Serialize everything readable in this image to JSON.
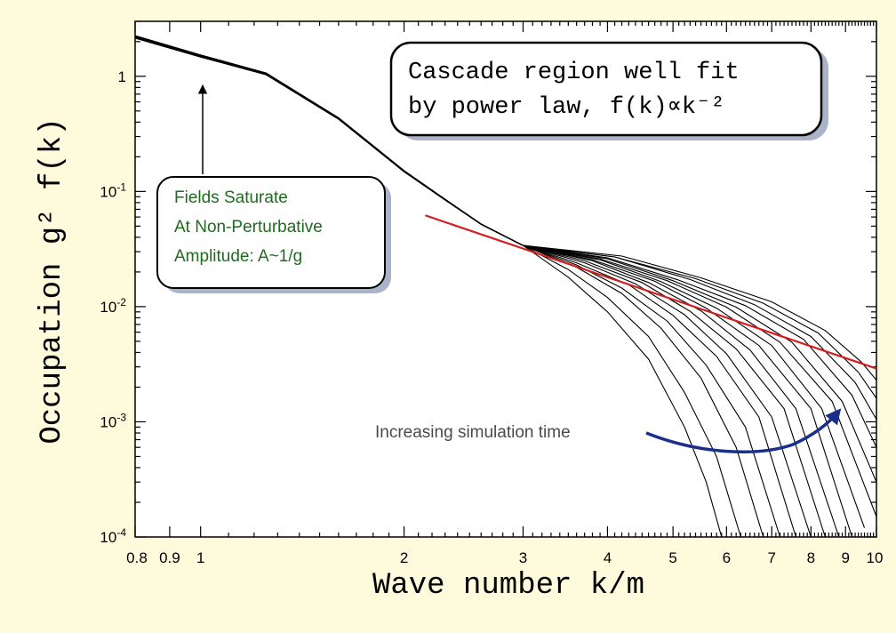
{
  "chart_data": {
    "type": "line",
    "xscale": "log",
    "yscale": "log",
    "xlim": [
      0.8,
      10
    ],
    "ylim": [
      0.0001,
      3
    ],
    "xlabel": "Wave number k/m",
    "ylabel": "Occupation g² f(k)",
    "x_ticks": [
      {
        "value": 0.8,
        "label": "0.8"
      },
      {
        "value": 0.9,
        "label": "0.9"
      },
      {
        "value": 1,
        "label": "1"
      },
      {
        "value": 2,
        "label": "2"
      },
      {
        "value": 3,
        "label": "3"
      },
      {
        "value": 4,
        "label": "4"
      },
      {
        "value": 5,
        "label": "5"
      },
      {
        "value": 6,
        "label": "6"
      },
      {
        "value": 7,
        "label": "7"
      },
      {
        "value": 8,
        "label": "8"
      },
      {
        "value": 9,
        "label": "9"
      },
      {
        "value": 10,
        "label": "10"
      }
    ],
    "y_ticks": [
      {
        "value": 1,
        "base": "1",
        "exp": ""
      },
      {
        "value": 0.1,
        "base": "10",
        "exp": "-1"
      },
      {
        "value": 0.01,
        "base": "10",
        "exp": "-2"
      },
      {
        "value": 0.001,
        "base": "10",
        "exp": "-3"
      },
      {
        "value": 0.0001,
        "base": "10",
        "exp": "-4"
      }
    ],
    "common_curve": {
      "x": [
        0.8,
        1.0,
        1.25,
        1.6,
        2.0,
        2.3,
        2.6,
        3.0
      ],
      "y": [
        2.2,
        1.5,
        1.05,
        0.43,
        0.15,
        0.085,
        0.052,
        0.034
      ]
    },
    "series_tails": [
      {
        "name": "t1",
        "x": [
          3.0,
          3.5,
          4.0,
          4.6,
          5.2,
          5.6,
          5.9
        ],
        "y": [
          0.034,
          0.018,
          0.009,
          0.0035,
          0.0009,
          0.0003,
          0.0001
        ]
      },
      {
        "name": "t2",
        "x": [
          3.0,
          3.5,
          4.0,
          4.6,
          5.2,
          5.8,
          6.3
        ],
        "y": [
          0.034,
          0.021,
          0.012,
          0.0055,
          0.0018,
          0.0005,
          0.0001
        ]
      },
      {
        "name": "t3",
        "x": [
          3.0,
          3.6,
          4.2,
          4.8,
          5.5,
          6.2,
          6.8
        ],
        "y": [
          0.034,
          0.022,
          0.013,
          0.0065,
          0.0024,
          0.0006,
          0.0001
        ]
      },
      {
        "name": "t4",
        "x": [
          3.0,
          3.6,
          4.2,
          4.9,
          5.6,
          6.4,
          7.2
        ],
        "y": [
          0.034,
          0.023,
          0.0145,
          0.0075,
          0.0031,
          0.0009,
          0.0001
        ]
      },
      {
        "name": "t5",
        "x": [
          3.0,
          3.6,
          4.3,
          5.0,
          5.8,
          6.7,
          7.6
        ],
        "y": [
          0.034,
          0.024,
          0.0155,
          0.0084,
          0.0037,
          0.0011,
          0.0001
        ]
      },
      {
        "name": "t6",
        "x": [
          3.0,
          3.7,
          4.4,
          5.2,
          6.0,
          7.0,
          8.0
        ],
        "y": [
          0.034,
          0.024,
          0.0158,
          0.0085,
          0.0039,
          0.0011,
          0.0001
        ]
      },
      {
        "name": "t7",
        "x": [
          3.0,
          3.7,
          4.5,
          5.3,
          6.2,
          7.3,
          8.4
        ],
        "y": [
          0.034,
          0.025,
          0.0162,
          0.0091,
          0.0043,
          0.0013,
          0.0001
        ]
      },
      {
        "name": "t8",
        "x": [
          3.0,
          3.8,
          4.6,
          5.5,
          6.5,
          7.6,
          8.8
        ],
        "y": [
          0.034,
          0.025,
          0.0162,
          0.0092,
          0.0042,
          0.0013,
          0.0001
        ]
      },
      {
        "name": "t9",
        "x": [
          3.0,
          3.8,
          4.7,
          5.6,
          6.7,
          8.0,
          9.2
        ],
        "y": [
          0.034,
          0.0255,
          0.0166,
          0.0097,
          0.0046,
          0.0013,
          0.0001
        ]
      },
      {
        "name": "t10",
        "x": [
          3.0,
          3.9,
          4.8,
          5.8,
          7.0,
          8.3,
          9.6
        ],
        "y": [
          0.034,
          0.0255,
          0.0165,
          0.0097,
          0.0046,
          0.0013,
          0.00012
        ]
      },
      {
        "name": "t11",
        "x": [
          3.0,
          3.9,
          4.9,
          6.0,
          7.2,
          8.6,
          10.0
        ],
        "y": [
          0.034,
          0.026,
          0.0168,
          0.0099,
          0.0049,
          0.0015,
          0.00015
        ]
      },
      {
        "name": "t12",
        "x": [
          3.0,
          4.0,
          5.0,
          6.2,
          7.5,
          8.9,
          10.0
        ],
        "y": [
          0.034,
          0.026,
          0.0168,
          0.0099,
          0.0049,
          0.0015,
          0.0003
        ]
      },
      {
        "name": "t13",
        "x": [
          3.0,
          4.0,
          5.1,
          6.4,
          7.8,
          9.2,
          10.0
        ],
        "y": [
          0.034,
          0.0265,
          0.017,
          0.0102,
          0.0052,
          0.0017,
          0.0006
        ]
      },
      {
        "name": "t14",
        "x": [
          3.0,
          4.1,
          5.3,
          6.6,
          8.0,
          9.3,
          10.0
        ],
        "y": [
          0.034,
          0.027,
          0.0172,
          0.0104,
          0.0055,
          0.0022,
          0.00105
        ]
      },
      {
        "name": "t15",
        "x": [
          3.0,
          4.1,
          5.4,
          6.8,
          8.2,
          9.4,
          10.0
        ],
        "y": [
          0.034,
          0.027,
          0.0175,
          0.0107,
          0.0059,
          0.0027,
          0.0016
        ]
      },
      {
        "name": "t16",
        "x": [
          3.0,
          4.2,
          5.5,
          7.0,
          8.4,
          9.5,
          10.0
        ],
        "y": [
          0.034,
          0.0275,
          0.0178,
          0.011,
          0.0062,
          0.0033,
          0.0023
        ]
      }
    ],
    "power_law_fit": {
      "x": [
        2.15,
        10
      ],
      "y": [
        0.062,
        0.0029
      ],
      "color": "#d41d1d"
    },
    "annotations": {
      "cascade_box": {
        "lines": [
          "Cascade region well fit",
          "by power law, f(k)∝k⁻²"
        ]
      },
      "fields_box": {
        "lines": [
          "Fields Saturate",
          "At Non-Perturbative",
          "Amplitude: A~1/g"
        ],
        "color": "#1f6b1f"
      },
      "time_label": {
        "text": "Increasing simulation time",
        "arrow_color": "#1a2e8c"
      }
    }
  },
  "colors": {
    "background": "#fefbdc",
    "plot_background": "#ffffff",
    "curve": "#000000"
  }
}
